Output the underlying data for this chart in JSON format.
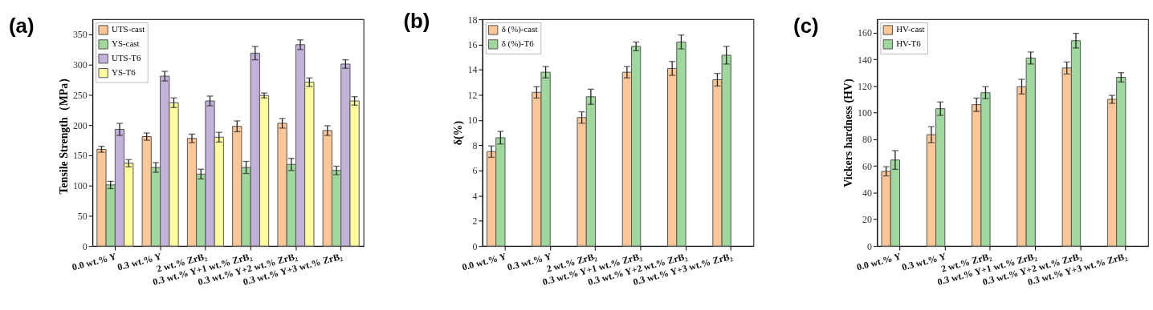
{
  "chart_data": [
    {
      "type": "bar",
      "title": "(a)",
      "ylabel": "Tensile Strength（MPa）",
      "categories": [
        "0.0 wt.% Y",
        "0.3 wt.% Y",
        "2 wt.% ZrB₂",
        "0.3 wt.% Y+1 wt.% ZrB₂",
        "0.3 wt.% Y+2 wt.% ZrB₂",
        "0.3 wt.% Y+3 wt.% ZrB₂"
      ],
      "series": [
        {
          "name": "UTS-cast",
          "color": "#fdc697",
          "values": [
            160,
            181,
            178,
            198,
            203,
            191
          ],
          "errors": [
            5,
            6,
            7,
            9,
            8,
            8
          ]
        },
        {
          "name": "YS-cast",
          "color": "#9ed89c",
          "values": [
            101,
            130,
            119,
            130,
            135,
            125
          ],
          "errors": [
            6,
            8,
            8,
            10,
            10,
            7
          ]
        },
        {
          "name": "UTS-T6",
          "color": "#c2b2d9",
          "values": [
            193,
            281,
            240,
            319,
            333,
            301
          ],
          "errors": [
            10,
            8,
            8,
            11,
            8,
            7
          ]
        },
        {
          "name": "YS-T6",
          "color": "#fdfc9e",
          "values": [
            137,
            237,
            180,
            249,
            271,
            240
          ],
          "errors": [
            6,
            8,
            8,
            4,
            7,
            7
          ]
        }
      ],
      "ylim": [
        0,
        375
      ],
      "yticks": [
        0,
        50,
        100,
        150,
        200,
        250,
        300,
        350
      ],
      "legend": "top left"
    },
    {
      "type": "bar",
      "title": "(b)",
      "ylabel": "δ(%)",
      "categories": [
        "0.0 wt.% Y",
        "0.3 wt.% Y",
        "2 wt.% ZrB₂",
        "0.3 wt.% Y+1 wt.% ZrB₂",
        "0.3 wt.% Y+2 wt.% ZrB₂",
        "0.3 wt.% Y+3 wt.% ZrB₂"
      ],
      "series": [
        {
          "name": "δ (%)-cast",
          "color": "#fdc697",
          "values": [
            7.5,
            12.2,
            10.2,
            13.8,
            14.1,
            13.2
          ],
          "errors": [
            0.45,
            0.45,
            0.45,
            0.45,
            0.55,
            0.5
          ]
        },
        {
          "name": "δ (%)-T6",
          "color": "#9ed89c",
          "values": [
            8.6,
            13.8,
            11.85,
            15.85,
            16.2,
            15.15
          ],
          "errors": [
            0.5,
            0.45,
            0.6,
            0.35,
            0.55,
            0.7
          ]
        }
      ],
      "ylim": [
        0,
        18
      ],
      "yticks": [
        0,
        2,
        4,
        6,
        8,
        10,
        12,
        14,
        16,
        18
      ],
      "legend": "top left"
    },
    {
      "type": "bar",
      "title": "(c)",
      "ylabel": "Vickers hardness (HV)",
      "categories": [
        "0.0 wt.% Y",
        "0.3 wt.% Y",
        "2 wt.% ZrB₂",
        "0.3 wt.% Y+1 wt.% ZrB₂",
        "0.3 wt.% Y+2 wt.% ZrB₂",
        "0.3 wt.% Y+3 wt.% ZrB₂"
      ],
      "series": [
        {
          "name": "HV-cast",
          "color": "#fdc697",
          "values": [
            56,
            83.5,
            106,
            119.5,
            133.5,
            110
          ],
          "errors": [
            3.5,
            6,
            5,
            5.5,
            4.5,
            3
          ]
        },
        {
          "name": "HV-T6",
          "color": "#9ed89c",
          "values": [
            64.5,
            103,
            115,
            141,
            154,
            126.5
          ],
          "errors": [
            7,
            5,
            4.5,
            4.5,
            5.5,
            3.5
          ]
        }
      ],
      "ylim": [
        0,
        170
      ],
      "yticks": [
        0,
        20,
        40,
        60,
        80,
        100,
        120,
        140,
        160
      ],
      "legend": "top left"
    }
  ]
}
